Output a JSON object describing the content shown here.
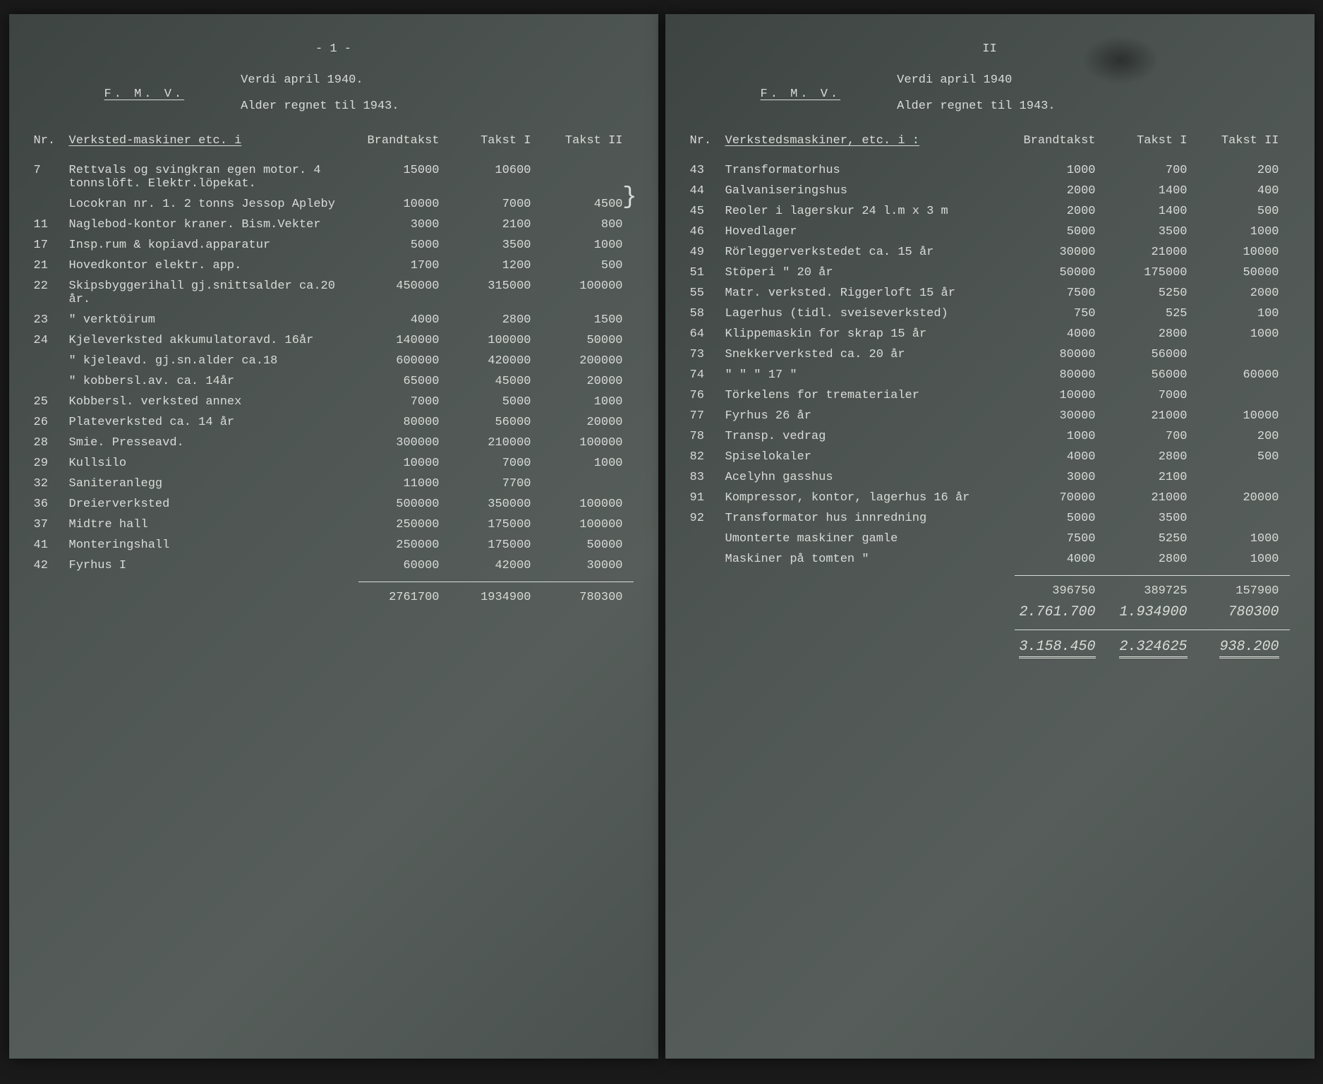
{
  "page1": {
    "pageNum": "- 1 -",
    "fmv": "F. M. V.",
    "title1": "Verdi april 1940.",
    "title2": "Alder regnet til 1943.",
    "colNr": "Nr.",
    "colDesc": "Verksted-maskiner etc. i",
    "colV1": "Brandtakst",
    "colV2": "Takst I",
    "colV3": "Takst II",
    "rows": [
      {
        "nr": "7",
        "desc": "Rettvals og svingkran egen motor. 4 tonnslöft. Elektr.löpekat.",
        "v1": "15000",
        "v2": "10600",
        "v3": ""
      },
      {
        "nr": "",
        "desc": "Locokran nr. 1. 2 tonns Jessop Apleby",
        "v1": "10000",
        "v2": "7000",
        "v3": "4500",
        "brace": true
      },
      {
        "nr": "11",
        "desc": "Naglebod-kontor kraner. Bism.Vekter",
        "v1": "3000",
        "v2": "2100",
        "v3": "800"
      },
      {
        "nr": "17",
        "desc": "Insp.rum & kopiavd.apparatur",
        "v1": "5000",
        "v2": "3500",
        "v3": "1000"
      },
      {
        "nr": "21",
        "desc": "Hovedkontor elektr. app.",
        "v1": "1700",
        "v2": "1200",
        "v3": "500"
      },
      {
        "nr": "22",
        "desc": "Skipsbyggerihall gj.snittsalder ca.20 år.",
        "v1": "450000",
        "v2": "315000",
        "v3": "100000"
      },
      {
        "nr": "23",
        "desc": "\"        verktöirum",
        "v1": "4000",
        "v2": "2800",
        "v3": "1500"
      },
      {
        "nr": "24",
        "desc": "Kjeleverksted akkumulatoravd. 16år",
        "v1": "140000",
        "v2": "100000",
        "v3": "50000"
      },
      {
        "nr": "",
        "desc": "\"   kjeleavd. gj.sn.alder ca.18",
        "v1": "600000",
        "v2": "420000",
        "v3": "200000"
      },
      {
        "nr": "",
        "desc": "\"   kobbersl.av. ca. 14år",
        "v1": "65000",
        "v2": "45000",
        "v3": "20000"
      },
      {
        "nr": "25",
        "desc": "Kobbersl. verksted annex",
        "v1": "7000",
        "v2": "5000",
        "v3": "1000"
      },
      {
        "nr": "26",
        "desc": "Plateverksted        ca. 14 år",
        "v1": "80000",
        "v2": "56000",
        "v3": "20000"
      },
      {
        "nr": "28",
        "desc": "Smie. Presseavd.",
        "v1": "300000",
        "v2": "210000",
        "v3": "100000"
      },
      {
        "nr": "29",
        "desc": "Kullsilo",
        "v1": "10000",
        "v2": "7000",
        "v3": "1000"
      },
      {
        "nr": "32",
        "desc": "Saniteranlegg",
        "v1": "11000",
        "v2": "7700",
        "v3": ""
      },
      {
        "nr": "36",
        "desc": "Dreierverksted",
        "v1": "500000",
        "v2": "350000",
        "v3": "100000"
      },
      {
        "nr": "37",
        "desc": "Midtre hall",
        "v1": "250000",
        "v2": "175000",
        "v3": "100000"
      },
      {
        "nr": "41",
        "desc": "Monteringshall",
        "v1": "250000",
        "v2": "175000",
        "v3": "50000"
      },
      {
        "nr": "42",
        "desc": "Fyrhus I",
        "v1": "60000",
        "v2": "42000",
        "v3": "30000"
      }
    ],
    "total": {
      "v1": "2761700",
      "v2": "1934900",
      "v3": "780300"
    }
  },
  "page2": {
    "pageNum": "II",
    "fmv": "F. M. V.",
    "title1": "Verdi april 1940",
    "title2": "Alder regnet til 1943.",
    "colNr": "Nr.",
    "colDesc": "Verkstedsmaskiner, etc. i :",
    "colV1": "Brandtakst",
    "colV2": "Takst I",
    "colV3": "Takst II",
    "rows": [
      {
        "nr": "43",
        "desc": "Transformatorhus",
        "v1": "1000",
        "v2": "700",
        "v3": "200"
      },
      {
        "nr": "44",
        "desc": "Galvaniseringshus",
        "v1": "2000",
        "v2": "1400",
        "v3": "400"
      },
      {
        "nr": "45",
        "desc": "Reoler i lagerskur 24 l.m x 3 m",
        "v1": "2000",
        "v2": "1400",
        "v3": "500"
      },
      {
        "nr": "46",
        "desc": "Hovedlager",
        "v1": "5000",
        "v2": "3500",
        "v3": "1000"
      },
      {
        "nr": "49",
        "desc": "Rörleggerverkstedet ca. 15 år",
        "v1": "30000",
        "v2": "21000",
        "v3": "10000"
      },
      {
        "nr": "51",
        "desc": "Stöperi        \"    20 år",
        "v1": "50000",
        "v2": "175000",
        "v3": "50000"
      },
      {
        "nr": "55",
        "desc": "Matr. verksted. Riggerloft 15 år",
        "v1": "7500",
        "v2": "5250",
        "v3": "2000"
      },
      {
        "nr": "58",
        "desc": "Lagerhus (tidl. sveiseverksted)",
        "v1": "750",
        "v2": "525",
        "v3": "100"
      },
      {
        "nr": "64",
        "desc": "Klippemaskin for skrap 15 år",
        "v1": "4000",
        "v2": "2800",
        "v3": "1000"
      },
      {
        "nr": "73",
        "desc": "Snekkerverksted   ca. 20 år",
        "v1": "80000",
        "v2": "56000",
        "v3": ""
      },
      {
        "nr": "74",
        "desc": "\"      \"      \"   17 \"",
        "v1": "80000",
        "v2": "56000",
        "v3": "60000"
      },
      {
        "nr": "76",
        "desc": "Törkelens for trematerialer",
        "v1": "10000",
        "v2": "7000",
        "v3": ""
      },
      {
        "nr": "77",
        "desc": "Fyrhus             26 år",
        "v1": "30000",
        "v2": "21000",
        "v3": "10000"
      },
      {
        "nr": "78",
        "desc": "Transp. vedrag",
        "v1": "1000",
        "v2": "700",
        "v3": "200"
      },
      {
        "nr": "82",
        "desc": "Spiselokaler",
        "v1": "4000",
        "v2": "2800",
        "v3": "500"
      },
      {
        "nr": "83",
        "desc": "Acelyhn gasshus",
        "v1": "3000",
        "v2": "2100",
        "v3": ""
      },
      {
        "nr": "91",
        "desc": "Kompressor, kontor, lagerhus 16 år",
        "v1": "70000",
        "v2": "21000",
        "v3": "20000"
      },
      {
        "nr": "92",
        "desc": "Transformator hus innredning",
        "v1": "5000",
        "v2": "3500",
        "v3": ""
      },
      {
        "nr": "",
        "desc": "Umonterte maskiner gamle",
        "v1": "7500",
        "v2": "5250",
        "v3": "1000"
      },
      {
        "nr": "",
        "desc": "Maskiner på tomten  \"",
        "v1": "4000",
        "v2": "2800",
        "v3": "1000"
      }
    ],
    "subtotal": {
      "v1": "396750",
      "v2": "389725",
      "v3": "157900"
    },
    "carried": {
      "v1": "2.761.700",
      "v2": "1.934900",
      "v3": "780300"
    },
    "grand": {
      "v1": "3.158.450",
      "v2": "2.324625",
      "v3": "938.200"
    }
  },
  "style": {
    "bg": "#4a5250",
    "text": "#d8dcd8",
    "font": "Courier New",
    "fontSize": 17
  }
}
